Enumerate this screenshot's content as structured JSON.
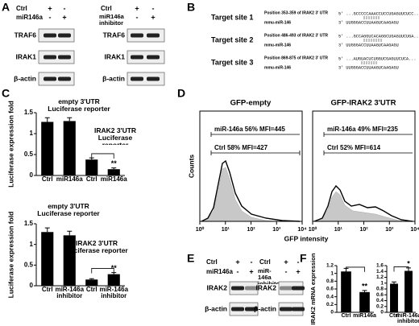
{
  "panel_labels": [
    "A",
    "B",
    "C",
    "D",
    "E",
    "F"
  ],
  "panel_a": {
    "left": {
      "rows": [
        {
          "label": "Ctrl",
          "signs": [
            "+",
            "-"
          ]
        },
        {
          "label": "miR146a",
          "signs": [
            "-",
            "+"
          ]
        }
      ],
      "bands": [
        "TRAF6",
        "IRAK1",
        "β-actin"
      ]
    },
    "right": {
      "rows": [
        {
          "label": "Ctrl",
          "signs": [
            "+",
            "-"
          ]
        },
        {
          "label": "miR146a inhibitor",
          "signs": [
            "-",
            "+"
          ]
        }
      ],
      "bands": [
        "TRAF6",
        "IRAK1",
        "β-actin"
      ]
    }
  },
  "panel_b": {
    "sites": [
      {
        "name": "Target site 1",
        "position": "Position 353-359 of IRAK2 3' UTR",
        "target": "5' ...GCCCCCAAACCUCCUGAGUUCUCC...",
        "mirna_name": "mmu-miR-146",
        "mirna": "3' UUGGGACCUUAAGUCAAGAGU"
      },
      {
        "name": "Target site 2",
        "position": "Position 486-493 of IRAK2 3' UTR",
        "target": "5' ...GCCAGGUCACAGGCUGAGUUCUGA...",
        "mirna_name": "mmu-miR-146",
        "mirna": "3' UUGGGACCUUAAGUCAAGAGU"
      },
      {
        "name": "Target site 3",
        "position": "Position 869-875 of IRAK2 3' UTR",
        "target": "5' ...AUGUACUCUGGUCGAGUUCUCA...",
        "mirna_name": "mmu-miR-146",
        "mirna": "3' UUGGGACCUUAAGUCAAGAGU"
      }
    ]
  },
  "panel_e": {
    "left": {
      "rows": [
        {
          "label": "Ctrl",
          "signs": [
            "+",
            "-"
          ]
        },
        {
          "label": "miR146a",
          "signs": [
            "-",
            "+"
          ]
        }
      ],
      "bands": [
        "IRAK2",
        "β-actin"
      ]
    },
    "right": {
      "rows": [
        {
          "label": "Ctrl",
          "signs": [
            "+",
            "-"
          ]
        },
        {
          "label": "miR-146a inhibitor",
          "signs": [
            "-",
            "+"
          ]
        }
      ],
      "bands": [
        "IRAK2",
        "β-actin"
      ]
    }
  },
  "chart_data": [
    {
      "type": "bar",
      "ylabel": "Luciferase expression fold",
      "categories": [
        "Ctrl",
        "miR146a",
        "Ctrl",
        "miR146a"
      ],
      "values": [
        1.28,
        1.3,
        0.38,
        0.15
      ],
      "errors": [
        0.1,
        0.08,
        0.04,
        0.03
      ],
      "color": "#000000",
      "ylim": [
        0,
        1.5
      ],
      "yticks": [
        0,
        0.5,
        1,
        1.5
      ],
      "annotations": [
        "empty 3'UTR Luciferase reporter",
        "IRAK2 3'UTR Luciferase reporter",
        "**"
      ]
    },
    {
      "type": "bar",
      "ylabel": "Luciferase expression fold",
      "categories": [
        "Ctrl",
        "miR-146a inhibitor",
        "Ctrl",
        "miR-146a inhibitor"
      ],
      "values": [
        1.3,
        1.22,
        0.15,
        0.28
      ],
      "errors": [
        0.1,
        0.1,
        0.02,
        0.04
      ],
      "color": "#000000",
      "ylim": [
        0,
        1.5
      ],
      "yticks": [
        0,
        0.5,
        1,
        1.5
      ],
      "annotations": [
        "empty 3'UTR Luciferase reporter",
        "IRAK2 3'UTR Luciferase reporter",
        "**"
      ]
    },
    {
      "type": "histogram",
      "title": "GFP-empty",
      "ylabel": "Counts",
      "log_x": true,
      "xlim": [
        1,
        10000
      ],
      "xticks": [
        {
          "value": 1,
          "label": "10⁰"
        },
        {
          "value": 10,
          "label": "10¹"
        },
        {
          "value": 100,
          "label": "10²"
        },
        {
          "value": 1000,
          "label": "10³"
        },
        {
          "value": 10000,
          "label": "10⁴"
        }
      ],
      "annotations": [
        "miR-146a 56% MFI=445",
        "Ctrl 58% MFI=427"
      ]
    },
    {
      "type": "histogram",
      "title": "GFP-IRAK2 3'UTR",
      "xlabel": "GFP intensity",
      "log_x": true,
      "xlim": [
        1,
        10000
      ],
      "xticks": [
        {
          "value": 1,
          "label": "10⁰"
        },
        {
          "value": 10,
          "label": "10¹"
        },
        {
          "value": 100,
          "label": "10²"
        },
        {
          "value": 1000,
          "label": "10³"
        },
        {
          "value": 10000,
          "label": "10⁴"
        }
      ],
      "annotations": [
        "miR-146a 49% MFI=235",
        "Ctrl 52% MFI=614"
      ]
    },
    {
      "type": "bar",
      "ylabel": "IRAK2 mRNA expression",
      "categories": [
        "Ctrl",
        "miR146a"
      ],
      "values": [
        1.05,
        0.52
      ],
      "errors": [
        0.08,
        0.04
      ],
      "color": "#000000",
      "ylim": [
        0,
        1.2
      ],
      "yticks": [
        0,
        0.2,
        0.4,
        0.6,
        0.8,
        1,
        1.2
      ],
      "annotations": [
        "**"
      ]
    },
    {
      "type": "bar",
      "categories": [
        "Ctrl",
        "miR-146a inhibitor"
      ],
      "values": [
        0.98,
        1.42
      ],
      "errors": [
        0.06,
        0.1
      ],
      "color": "#000000",
      "ylim": [
        0,
        1.6
      ],
      "yticks": [
        0,
        0.2,
        0.4,
        0.6,
        0.8,
        1,
        1.2,
        1.4,
        1.6
      ],
      "annotations": [
        "*"
      ]
    }
  ]
}
